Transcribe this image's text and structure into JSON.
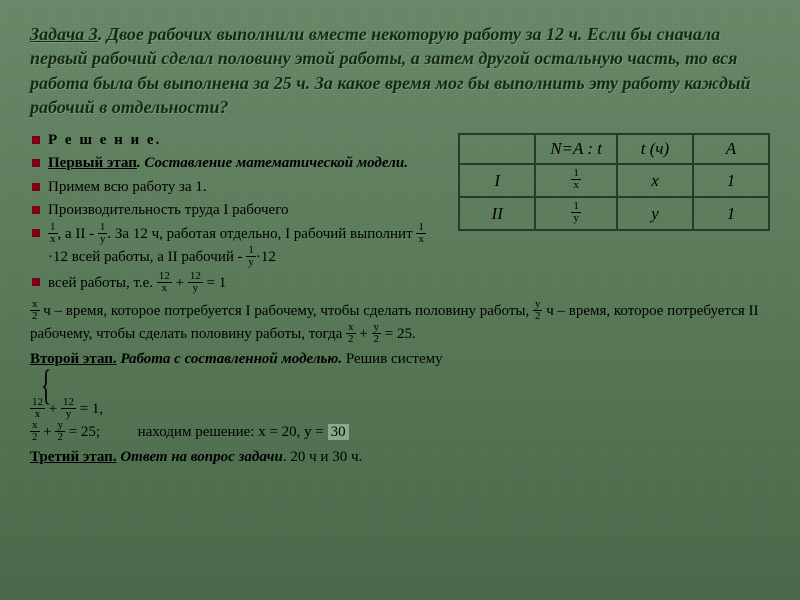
{
  "title": {
    "task_label": "Задача 3",
    "text": ".  Двое рабочих выполнили вместе некоторую работу за 12 ч. Если бы сначала первый рабочий сделал половину этой работы, а затем другой остальную часть, то вся работа была бы выполнена за 25 ч. За какое время мог бы выполнить эту работу каждый рабочий в отдельности?"
  },
  "solution": {
    "heading": "Р е ш е н и е.",
    "stage1_label": "Первый этап",
    "stage1_text": ". Составление математической модели.",
    "line1": "Примем всю работу за 1.",
    "line2": "Производительность труда I рабочего",
    "line3a": ", а II -",
    "line3b": ". За 12 ч, работая отдельно, I рабочий выполнит",
    "line3c": "·12 всей работы, а II рабочий -",
    "line3d": "·12",
    "line4a": "всей работы, т.е.",
    "line4b": "+",
    "line4c": "= 1"
  },
  "table": {
    "h1": "N=A : t",
    "h2": "t (ч)",
    "h3": "A",
    "r1c1": "I",
    "r1c3": "x",
    "r1c4": "1",
    "r2c1": "II",
    "r2c3": "y",
    "r2c4": "1",
    "frac1n": "1",
    "frac1d": "x",
    "frac2n": "1",
    "frac2d": "y"
  },
  "body2": {
    "p1a": "ч – время, которое потребуется I рабочему, чтобы сделать половину работы,",
    "p1b": "ч – время, которое потребуется II рабочему, чтобы сделать половину работы, тогда",
    "p1c": "+",
    "p1d": "= 25.",
    "stage2_label": "Второй этап.",
    "stage2_text": " Работа с составленной моделью.",
    "stage2_tail": " Решив систему",
    "sys1a": "+",
    "sys1b": "= 1,",
    "sys2a": "+",
    "sys2b": "= 25;",
    "find": "находим решение: x = 20, y = ",
    "y_val": "30",
    "stage3_label": "Третий этап.",
    "stage3_text": " Ответ на вопрос задачи",
    "answer": ". 20 ч и 30 ч."
  },
  "fracs": {
    "f1x_n": "1",
    "f1x_d": "x",
    "f1y_n": "1",
    "f1y_d": "y",
    "f12x_n": "12",
    "f12x_d": "x",
    "f12y_n": "12",
    "f12y_d": "y",
    "fx2_n": "x",
    "fx2_d": "2",
    "fy2_n": "y",
    "fy2_d": "2"
  },
  "colors": {
    "bg": "#5a7a5a",
    "border": "#2a3a2a",
    "bullet": "#7a0016",
    "title": "#152a15"
  }
}
